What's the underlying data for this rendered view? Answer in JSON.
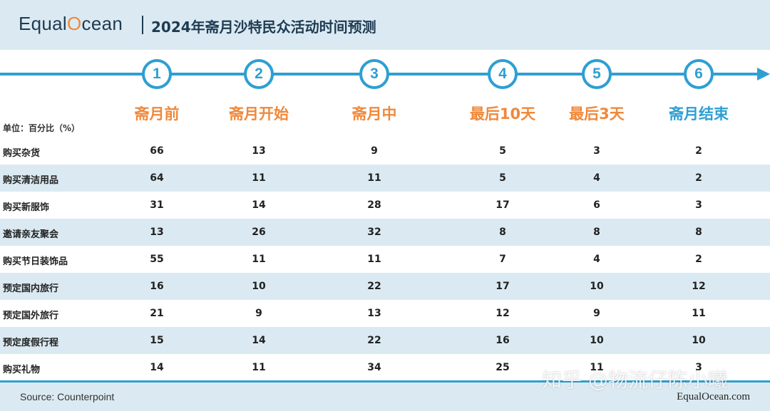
{
  "header": {
    "logo_pre": "Equal",
    "logo_o": "O",
    "logo_post": "cean",
    "title": "2024年斋月沙特民众活动时间预测"
  },
  "chart_data": {
    "type": "table",
    "unit_label": "单位：百分比（%）",
    "steps": [
      "1",
      "2",
      "3",
      "4",
      "5",
      "6"
    ],
    "columns": [
      "斋月前",
      "斋月开始",
      "斋月中",
      "最后10天",
      "最后3天",
      "斋月结束"
    ],
    "rows": [
      {
        "label": "购买杂货",
        "values": [
          "66",
          "13",
          "9",
          "5",
          "3",
          "2"
        ]
      },
      {
        "label": "购买清洁用品",
        "values": [
          "64",
          "11",
          "11",
          "5",
          "4",
          "2"
        ]
      },
      {
        "label": "购买新服饰",
        "values": [
          "31",
          "14",
          "28",
          "17",
          "6",
          "3"
        ]
      },
      {
        "label": "邀请亲友聚会",
        "values": [
          "13",
          "26",
          "32",
          "8",
          "8",
          "8"
        ]
      },
      {
        "label": "购买节日装饰品",
        "values": [
          "55",
          "11",
          "11",
          "7",
          "4",
          "2"
        ]
      },
      {
        "label": "预定国内旅行",
        "values": [
          "16",
          "10",
          "22",
          "17",
          "10",
          "12"
        ]
      },
      {
        "label": "预定国外旅行",
        "values": [
          "21",
          "9",
          "13",
          "12",
          "9",
          "11"
        ]
      },
      {
        "label": "预定度假行程",
        "values": [
          "15",
          "14",
          "22",
          "16",
          "10",
          "10"
        ]
      },
      {
        "label": "购买礼物",
        "values": [
          "14",
          "11",
          "34",
          "25",
          "11",
          "3"
        ]
      }
    ]
  },
  "footer": {
    "source": "Source: Counterpoint",
    "site": "EqualOcean.com",
    "watermark": "知乎 @物流仔陈小曦"
  },
  "colors": {
    "accent_blue": "#2e9fd2",
    "accent_orange": "#f0883a",
    "band": "#dbeaf2"
  }
}
